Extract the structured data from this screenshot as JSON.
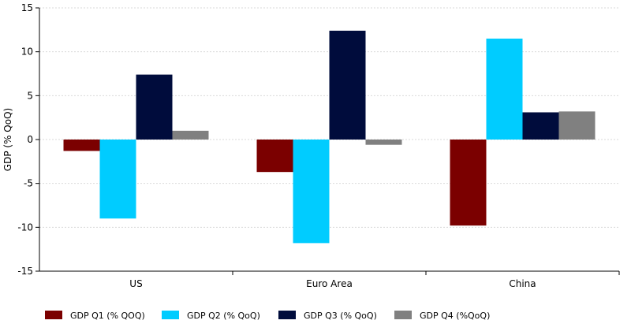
{
  "chart_data": {
    "type": "bar",
    "title": "",
    "xlabel": "",
    "ylabel": "GDP (% QoQ)",
    "ylim": [
      -15,
      15
    ],
    "yticks": [
      15,
      10,
      5,
      0,
      -5,
      -10,
      -15
    ],
    "grid": true,
    "legend_position": "bottom",
    "categories": [
      "US",
      "Euro Area",
      "China"
    ],
    "series": [
      {
        "name": "GDP Q1 (% QOQ)",
        "color": "#7b0000",
        "values": [
          -1.3,
          -3.7,
          -9.8
        ]
      },
      {
        "name": "GDP Q2 (% QoQ)",
        "color": "#00ccff",
        "values": [
          -9.0,
          -11.8,
          11.5
        ]
      },
      {
        "name": "GDP Q3 (% QoQ)",
        "color": "#000c3c",
        "values": [
          7.4,
          12.4,
          3.1
        ]
      },
      {
        "name": "GDP Q4 (%QoQ)",
        "color": "#808080",
        "values": [
          1.0,
          -0.6,
          3.2
        ]
      }
    ]
  }
}
